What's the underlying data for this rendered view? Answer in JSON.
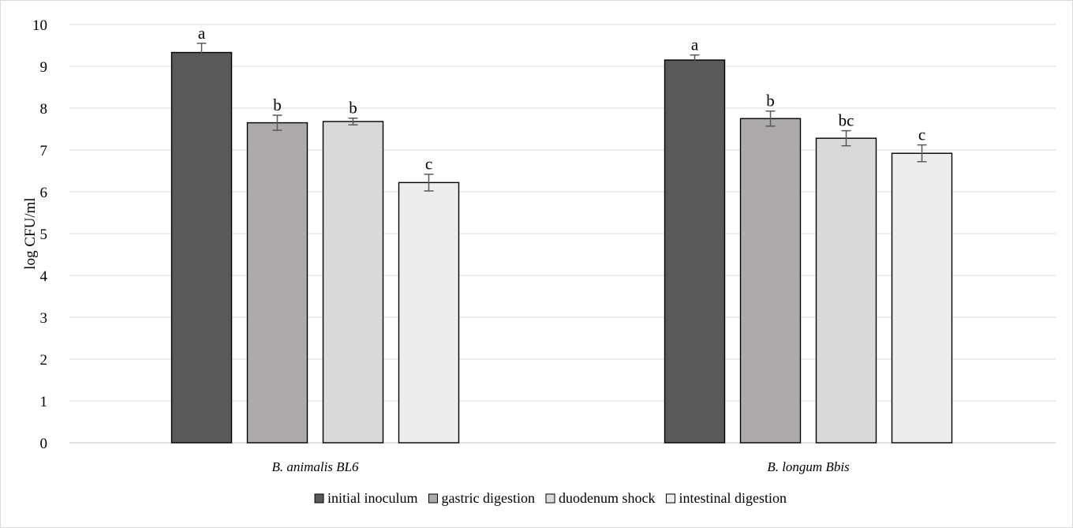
{
  "chart_data": {
    "type": "bar",
    "ylabel": "log CFU/ml",
    "xlabel": "",
    "ylim": [
      0,
      10
    ],
    "yticks": [
      0,
      1,
      2,
      3,
      4,
      5,
      6,
      7,
      8,
      9,
      10
    ],
    "grid": true,
    "legend_position": "bottom",
    "categories": [
      "B. animalis BL6",
      "B. longum Bbis"
    ],
    "series": [
      {
        "name": "initial inoculum",
        "color": "#595959",
        "values": [
          9.33,
          9.15
        ],
        "errors": [
          0.22,
          0.12
        ],
        "labels": [
          "a",
          "a"
        ]
      },
      {
        "name": "gastric digestion",
        "color": "#aeaaaa",
        "values": [
          7.65,
          7.75
        ],
        "errors": [
          0.18,
          0.18
        ],
        "labels": [
          "b",
          "b"
        ]
      },
      {
        "name": "duodenum shock",
        "color": "#d9d9d9",
        "values": [
          7.68,
          7.28
        ],
        "errors": [
          0.08,
          0.18
        ],
        "labels": [
          "b",
          "bc"
        ]
      },
      {
        "name": "intestinal digestion",
        "color": "#ededed",
        "values": [
          6.22,
          6.92
        ],
        "errors": [
          0.2,
          0.2
        ],
        "labels": [
          "c",
          "c"
        ]
      }
    ]
  }
}
